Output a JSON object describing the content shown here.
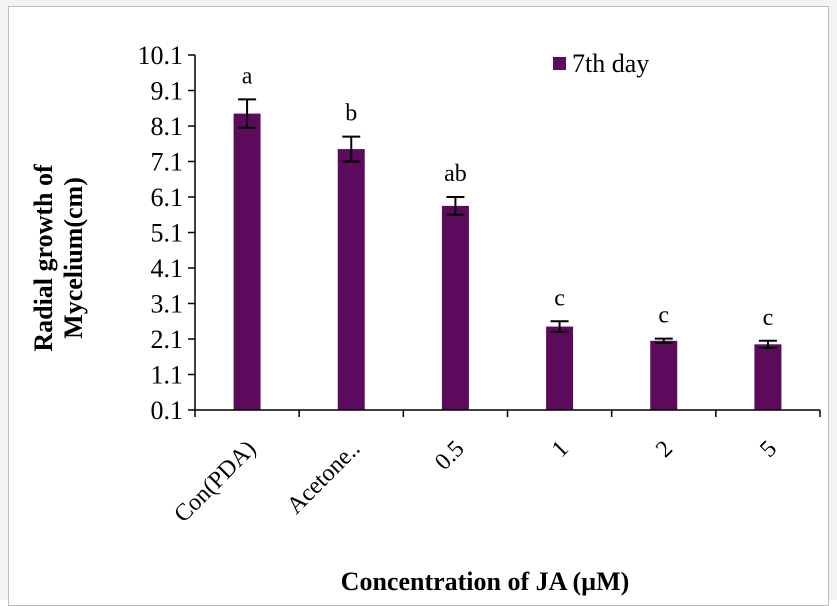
{
  "chart_data": {
    "type": "bar",
    "categories": [
      "Con(PDA)",
      "Acetone..",
      "0.5",
      "1",
      "2",
      "5"
    ],
    "series": [
      {
        "name": "7th day",
        "values": [
          8.45,
          7.45,
          5.85,
          2.45,
          2.05,
          1.95
        ],
        "errors": [
          0.4,
          0.35,
          0.25,
          0.15,
          0.06,
          0.1
        ],
        "significance": [
          "a",
          "b",
          "ab",
          "c",
          "c",
          "c"
        ]
      }
    ],
    "xlabel": "Concentration of  JA  (µM)",
    "ylabel_line1": "Radial growth of",
    "ylabel_line2": "Mycelium(cm)",
    "ylim": [
      0.1,
      10.1
    ],
    "yticks": [
      "0.1",
      "1.1",
      "2.1",
      "3.1",
      "4.1",
      "5.1",
      "6.1",
      "7.1",
      "8.1",
      "9.1",
      "10.1"
    ],
    "legend_position": "top-right",
    "grid": false,
    "bar_color": "#5c0a5c"
  }
}
